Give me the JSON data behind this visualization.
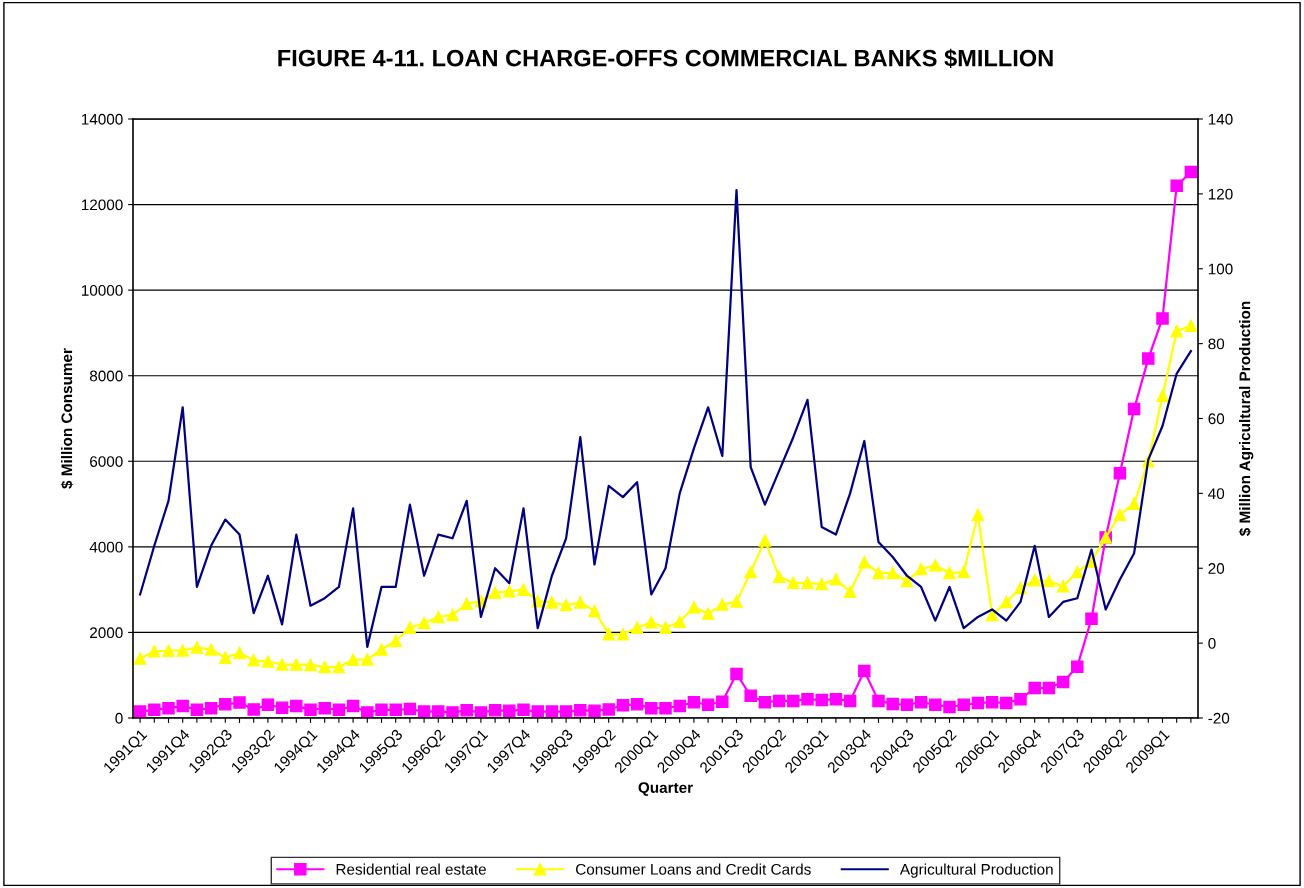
{
  "chart_data": {
    "type": "line",
    "title": "FIGURE 4-11. LOAN CHARGE-OFFS COMMERCIAL BANKS $MILLION",
    "xlabel": "Quarter",
    "ylabel": "$ Million Consumer",
    "y2label": "$ Million Agricultural Production",
    "categories": [
      "1991Q1",
      null,
      null,
      "1991Q4",
      null,
      null,
      "1992Q3",
      null,
      null,
      "1993Q2",
      null,
      null,
      "1994Q1",
      null,
      null,
      "1994Q4",
      null,
      null,
      "1995Q3",
      null,
      null,
      "1996Q2",
      null,
      null,
      "1997Q1",
      null,
      null,
      "1997Q4",
      null,
      null,
      "1998Q3",
      null,
      null,
      "1999Q2",
      null,
      null,
      "2000Q1",
      null,
      null,
      "2000Q4",
      null,
      null,
      "2001Q3",
      null,
      null,
      "2002Q2",
      null,
      null,
      "2003Q1",
      null,
      null,
      "2003Q4",
      null,
      null,
      "2004Q3",
      null,
      null,
      "2005Q2",
      null,
      null,
      "2006Q1",
      null,
      null,
      "2006Q4",
      null,
      null,
      "2007Q3",
      null,
      null,
      "2008Q2",
      null,
      null,
      "2009Q1",
      null,
      null
    ],
    "ylim": [
      0,
      14000
    ],
    "yticks": [
      0,
      2000,
      4000,
      6000,
      8000,
      10000,
      12000,
      14000
    ],
    "y2lim": [
      -20,
      140
    ],
    "y2ticks": [
      -20,
      0,
      20,
      40,
      60,
      80,
      100,
      120,
      140
    ],
    "grid": "y",
    "legend": "bottom",
    "series": [
      {
        "name": "Residential real estate",
        "color": "#ff00ff",
        "marker": "square",
        "values": [
          150,
          190,
          230,
          280,
          190,
          230,
          320,
          360,
          200,
          310,
          240,
          280,
          190,
          230,
          190,
          280,
          130,
          190,
          190,
          210,
          150,
          150,
          130,
          180,
          130,
          180,
          170,
          190,
          150,
          150,
          150,
          180,
          170,
          200,
          300,
          320,
          230,
          230,
          280,
          370,
          310,
          380,
          1030,
          520,
          370,
          400,
          400,
          440,
          420,
          440,
          400,
          1100,
          400,
          330,
          310,
          370,
          310,
          260,
          310,
          350,
          370,
          350,
          440,
          700,
          700,
          840,
          1200,
          2320,
          4220,
          5720,
          7220,
          8400,
          9340,
          12440,
          12760
        ]
      },
      {
        "name": "Consumer Loans and Credit Cards",
        "color": "#ffff00",
        "marker": "triangle",
        "values": [
          1390,
          1560,
          1570,
          1580,
          1650,
          1600,
          1410,
          1520,
          1350,
          1320,
          1250,
          1250,
          1240,
          1190,
          1190,
          1360,
          1370,
          1600,
          1800,
          2110,
          2220,
          2360,
          2410,
          2670,
          2730,
          2930,
          2960,
          3000,
          2730,
          2700,
          2640,
          2700,
          2500,
          1960,
          1960,
          2110,
          2240,
          2110,
          2250,
          2590,
          2440,
          2650,
          2720,
          3410,
          4150,
          3300,
          3160,
          3160,
          3130,
          3240,
          2950,
          3640,
          3390,
          3390,
          3200,
          3480,
          3570,
          3390,
          3410,
          4750,
          2410,
          2710,
          3040,
          3220,
          3200,
          3080,
          3410,
          3660,
          4220,
          4750,
          5010,
          6000,
          7530,
          9040,
          9170
        ]
      },
      {
        "name": "Agricultural Production",
        "color": "#000080",
        "marker": "none",
        "axis": "y2",
        "values": [
          13,
          26,
          38,
          63,
          15,
          26,
          33,
          29,
          8,
          18,
          5,
          29,
          10,
          12,
          15,
          36,
          -1,
          15,
          15,
          37,
          18,
          29,
          28,
          38,
          7,
          20,
          16,
          36,
          4,
          18,
          28,
          55,
          21,
          42,
          39,
          43,
          13,
          20,
          40,
          52,
          63,
          50,
          121,
          47,
          37,
          46,
          55,
          65,
          31,
          29,
          40,
          54,
          27,
          23,
          18,
          15,
          6,
          15,
          4,
          7,
          9,
          6,
          11,
          26,
          7,
          11,
          12,
          25,
          9,
          17,
          24,
          49,
          58,
          72,
          78
        ]
      }
    ]
  }
}
